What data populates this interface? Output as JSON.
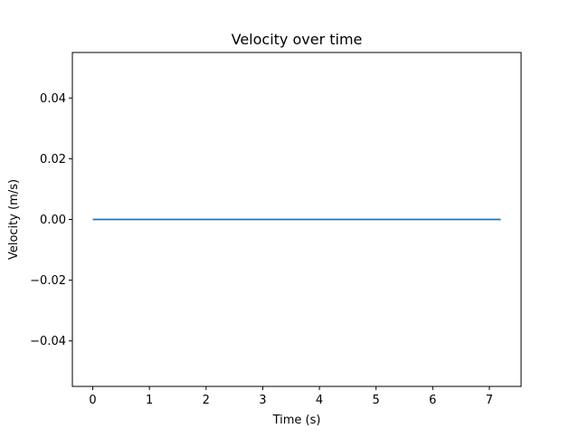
{
  "chart_data": {
    "type": "line",
    "title": "Velocity over time",
    "xlabel": "Time (s)",
    "ylabel": "Velocity (m/s)",
    "xlim": [
      -0.36,
      7.56
    ],
    "ylim": [
      -0.055,
      0.055
    ],
    "x_ticks": [
      0,
      1,
      2,
      3,
      4,
      5,
      6,
      7
    ],
    "x_tick_labels": [
      "0",
      "1",
      "2",
      "3",
      "4",
      "5",
      "6",
      "7"
    ],
    "y_ticks": [
      -0.04,
      -0.02,
      0.0,
      0.02,
      0.04
    ],
    "y_tick_labels": [
      "−0.04",
      "−0.02",
      "0.00",
      "0.02",
      "0.04"
    ],
    "grid": false,
    "legend": "none",
    "series": [
      {
        "color": "#1f77b4",
        "x": [
          0,
          7.2
        ],
        "y": [
          0,
          0
        ]
      }
    ]
  }
}
